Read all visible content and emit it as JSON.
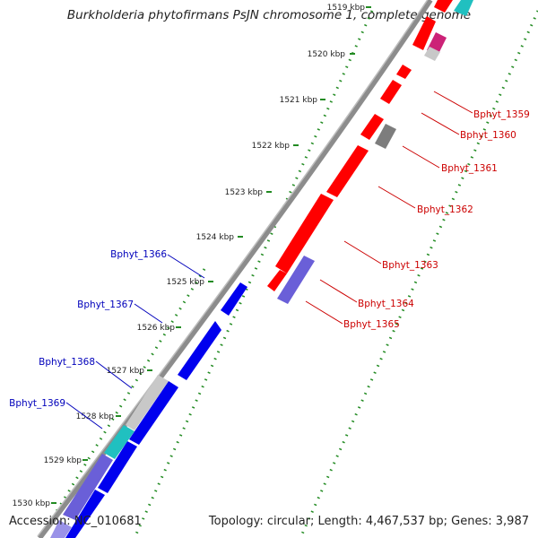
{
  "title": "Burkholderia phytofirmans PsJN chromosome 1, complete genome",
  "footer": {
    "accession": "Accession: NC_010681",
    "summary": "Topology: circular; Length: 4,467,537 bp; Genes: 3,987"
  },
  "colors": {
    "backbone": "#8c8c8c",
    "forward_label": "#cc0000",
    "reverse_label": "#0000bb",
    "tick_minor": "#228b22",
    "red": "#ff0000",
    "blue": "#0000ee",
    "grey": "#c8c8c8",
    "dark_grey": "#7d7d7d",
    "cyan": "#20c0c0",
    "purple": "#6a5fd8",
    "pink": "#ff66aa"
  },
  "ruler_labels": [
    "1519 kbp",
    "1520 kbp",
    "1521 kbp",
    "1522 kbp",
    "1523 kbp",
    "1524 kbp",
    "1525 kbp",
    "1526 kbp",
    "1527 kbp",
    "1528 kbp",
    "1529 kbp",
    "1530 kbp"
  ],
  "forward_gene_labels": [
    "Bphyt_1359",
    "Bphyt_1360",
    "Bphyt_1361",
    "Bphyt_1362",
    "Bphyt_1363",
    "Bphyt_1364",
    "Bphyt_1365"
  ],
  "reverse_gene_labels": [
    "Bphyt_1366",
    "Bphyt_1367",
    "Bphyt_1368",
    "Bphyt_1369"
  ]
}
